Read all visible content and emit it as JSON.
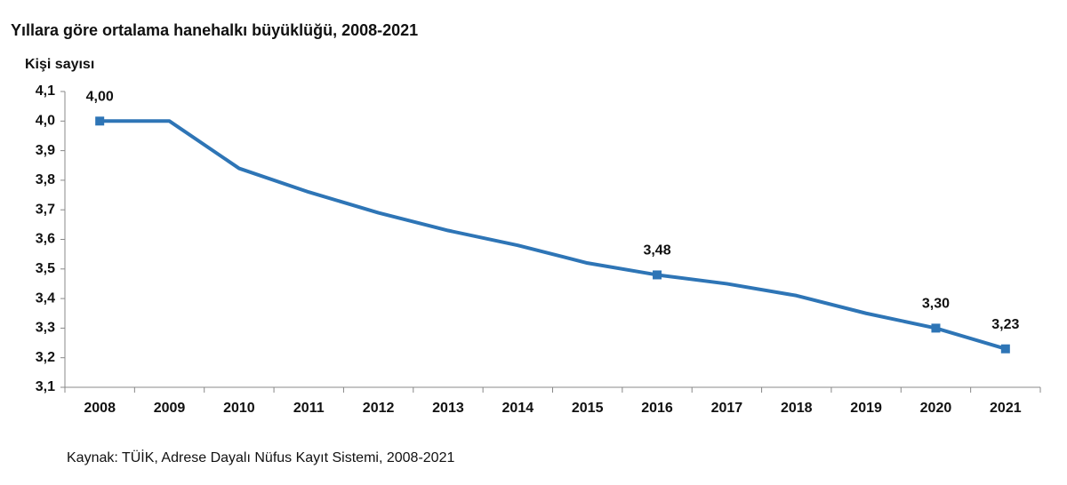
{
  "chart_data": {
    "type": "line",
    "title": "Yıllara göre ortalama hanehalkı büyüklüğü, 2008-2021",
    "y_label": "Kişi sayısı",
    "source": "Kaynak: TÜİK, Adrese Dayalı Nüfus Kayıt Sistemi, 2008-2021",
    "categories": [
      "2008",
      "2009",
      "2010",
      "2011",
      "2012",
      "2013",
      "2014",
      "2015",
      "2016",
      "2017",
      "2018",
      "2019",
      "2020",
      "2021"
    ],
    "values": [
      4.0,
      4.0,
      3.84,
      3.76,
      3.69,
      3.63,
      3.58,
      3.52,
      3.48,
      3.45,
      3.41,
      3.35,
      3.3,
      3.23
    ],
    "value_labels": [
      "4,00",
      null,
      null,
      null,
      null,
      null,
      null,
      null,
      "3,48",
      null,
      null,
      null,
      "3,30",
      "3,23"
    ],
    "color": "#2e75b6",
    "ylim": [
      3.1,
      4.1
    ],
    "yticks": [
      {
        "value": 3.1,
        "label": "3,1"
      },
      {
        "value": 3.2,
        "label": "3,2"
      },
      {
        "value": 3.3,
        "label": "3,3"
      },
      {
        "value": 3.4,
        "label": "3,4"
      },
      {
        "value": 3.5,
        "label": "3,5"
      },
      {
        "value": 3.6,
        "label": "3,6"
      },
      {
        "value": 3.7,
        "label": "3,7"
      },
      {
        "value": 3.8,
        "label": "3,8"
      },
      {
        "value": 3.9,
        "label": "3,9"
      },
      {
        "value": 4.0,
        "label": "4,0"
      },
      {
        "value": 4.1,
        "label": "4,1"
      }
    ],
    "grid": false
  }
}
